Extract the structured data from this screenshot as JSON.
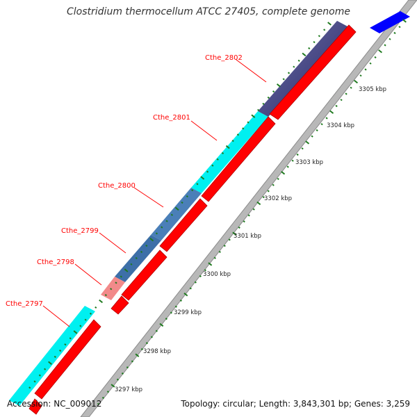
{
  "title": "Clostridium thermocellum ATCC 27405, complete genome",
  "footer": {
    "accession": "Accession: NC_009012",
    "summary": "Topology: circular; Length: 3,843,301 bp; Genes: 3,259"
  },
  "colors": {
    "cds": "#ff0000",
    "backbone": "#b0b0b0",
    "ticks": "#1f7a1f",
    "label": "#ff0000",
    "strand": "#0000ff"
  },
  "gene_labels": [
    {
      "id": "Cthe_2802"
    },
    {
      "id": "Cthe_2801"
    },
    {
      "id": "Cthe_2800"
    },
    {
      "id": "Cthe_2799"
    },
    {
      "id": "Cthe_2798"
    },
    {
      "id": "Cthe_2797"
    }
  ],
  "ruler_labels": [
    "3297 kbp",
    "3298 kbp",
    "3299 kbp",
    "3300 kbp",
    "3301 kbp",
    "3302 kbp",
    "3303 kbp",
    "3304 kbp",
    "3305 kbp"
  ],
  "feature_colors": [
    "#2a2a7a",
    "#00e5e5",
    "#3d6fa8",
    "#3d6fa8",
    "#f08080",
    "#00e5e5"
  ]
}
